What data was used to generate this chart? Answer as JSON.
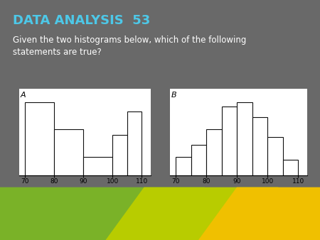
{
  "title": "DATA ANALYSIS  53",
  "subtitle": "Given the two histograms below, which of the following\nstatements are true?",
  "bg_color": "#696969",
  "title_color": "#4dc8e8",
  "subtitle_color": "#ffffff",
  "bar_edge_color": "#111111",
  "bar_face_color": "#ffffff",
  "panel_face_color": "#e8e8e8",
  "hist_A_label": "A",
  "hist_B_label": "B",
  "hist_A_bins": [
    70,
    80,
    90,
    100,
    105,
    110
  ],
  "hist_A_heights": [
    4.0,
    2.5,
    1.0,
    2.2,
    3.5
  ],
  "hist_B_bins": [
    70,
    75,
    80,
    85,
    90,
    95,
    100,
    105,
    110
  ],
  "hist_B_heights": [
    1.2,
    2.0,
    3.0,
    4.5,
    4.8,
    3.8,
    2.5,
    1.0
  ],
  "xticks": [
    70,
    80,
    90,
    100,
    110
  ],
  "accent_green": "#7ab228",
  "accent_yellow_green": "#b8cc00",
  "accent_yellow": "#f0c000"
}
